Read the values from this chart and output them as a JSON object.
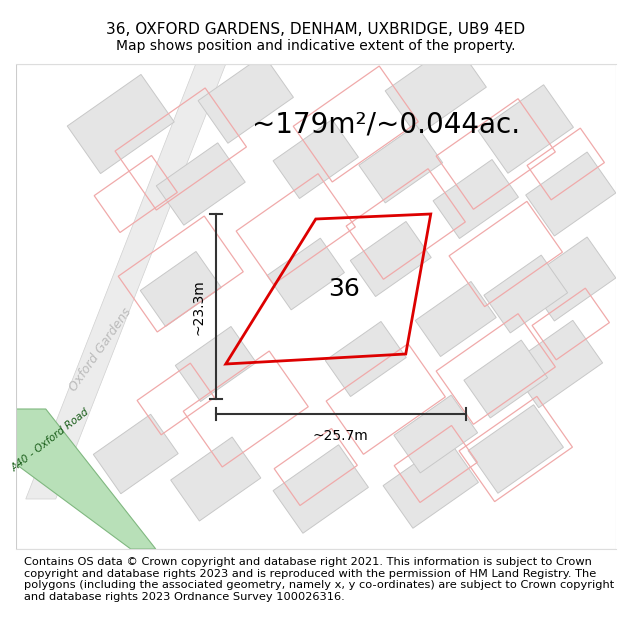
{
  "title": "36, OXFORD GARDENS, DENHAM, UXBRIDGE, UB9 4ED",
  "subtitle": "Map shows position and indicative extent of the property.",
  "area_text": "~179m²/~0.044ac.",
  "dim_width": "~25.7m",
  "dim_height": "~23.3m",
  "label_number": "36",
  "road_label_oxford": "Oxford Gardens",
  "road_label_a40": "A40 - Oxford Road",
  "footer": "Contains OS data © Crown copyright and database right 2021. This information is subject to Crown copyright and database rights 2023 and is reproduced with the permission of HM Land Registry. The polygons (including the associated geometry, namely x, y co-ordinates) are subject to Crown copyright and database rights 2023 Ordnance Survey 100026316.",
  "map_bg": "#f7f7f7",
  "plot_edge_color": "#dd0000",
  "dim_color": "#333333",
  "block_face": "#e5e5e5",
  "block_edge": "#c8c8c8",
  "parcel_edge": "#f0aaaa",
  "road_oxford_face": "#ececec",
  "road_oxford_edge": "#d0d0d0",
  "a40_face": "#b8e0b8",
  "a40_edge": "#80b880",
  "a40_text": "#2a6e2a",
  "oxford_text": "#bbbbbb",
  "title_fontsize": 11,
  "subtitle_fontsize": 10,
  "area_fontsize": 20,
  "footer_fontsize": 8.2
}
